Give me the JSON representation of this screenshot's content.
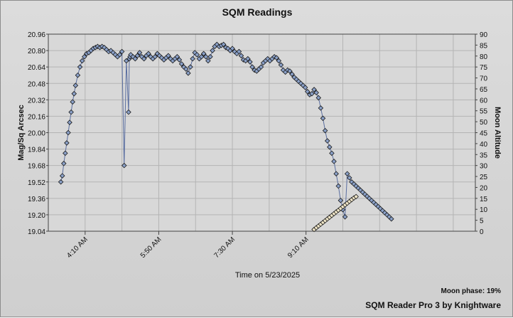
{
  "chart_data": {
    "type": "scatter",
    "title": "SQM Readings",
    "xlabel": "Time on 5/23/2025",
    "ylabel": "Mag/Sq Arcsec",
    "y2label": "Moon Altitude",
    "grid": true,
    "x_ticks": [
      "4:10 AM",
      "5:50 AM",
      "7:30 AM",
      "9:10 AM"
    ],
    "x_tick_minutes": [
      250,
      350,
      450,
      550
    ],
    "x_range_minutes": [
      200,
      780
    ],
    "ylim": [
      19.04,
      20.96
    ],
    "y_ticks": [
      19.04,
      19.2,
      19.36,
      19.52,
      19.68,
      19.84,
      20.0,
      20.16,
      20.32,
      20.48,
      20.64,
      20.8,
      20.96
    ],
    "y2lim": [
      0,
      90
    ],
    "y2_ticks": [
      0,
      5,
      10,
      15,
      20,
      25,
      30,
      35,
      40,
      45,
      50,
      55,
      60,
      65,
      70,
      75,
      80,
      85,
      90
    ],
    "colors": {
      "series_line": "#5a6ea0",
      "marker_fill": "#8aa0c8",
      "marker_stroke": "#1a1a1a",
      "moon_fill": "#f0e6c8",
      "grid": "#b4b4b4",
      "plot_bg": "#d8d8d8"
    },
    "series": [
      {
        "name": "",
        "axis": "left",
        "x_minutes": [
          217,
          219,
          221,
          223,
          225,
          227,
          229,
          231,
          233,
          235,
          237,
          240,
          243,
          246,
          249,
          252,
          255,
          258,
          261,
          264,
          267,
          270,
          273,
          276,
          279,
          282,
          285,
          288,
          291,
          294,
          297,
          300,
          303,
          306,
          309,
          310,
          311,
          312,
          315,
          318,
          321,
          324,
          327,
          330,
          333,
          336,
          339,
          342,
          345,
          348,
          351,
          354,
          357,
          360,
          363,
          366,
          369,
          372,
          375,
          378,
          381,
          384,
          387,
          390,
          393,
          396,
          399,
          402,
          405,
          408,
          411,
          414,
          417,
          420,
          423,
          426,
          429,
          432,
          435,
          438,
          441,
          444,
          447,
          450,
          453,
          456,
          459,
          462,
          465,
          468,
          471,
          474,
          477,
          480,
          483,
          486,
          489,
          492,
          495,
          498,
          501,
          504,
          507,
          510,
          513,
          516,
          519,
          522,
          525,
          528,
          531,
          534,
          537,
          540,
          543,
          546,
          549,
          552,
          555,
          558,
          561,
          564,
          567,
          570,
          573,
          576,
          579,
          582,
          585,
          588,
          591,
          594,
          597,
          600,
          603,
          606,
          609,
          612,
          615,
          618,
          621,
          624,
          627,
          630,
          633,
          636,
          639,
          642,
          645,
          648,
          651,
          654,
          657,
          660,
          663,
          666
        ],
        "values": [
          19.52,
          19.58,
          19.7,
          19.8,
          19.9,
          20.0,
          20.1,
          20.2,
          20.3,
          20.38,
          20.46,
          20.56,
          20.64,
          20.7,
          20.74,
          20.77,
          20.78,
          20.8,
          20.82,
          20.83,
          20.84,
          20.83,
          20.84,
          20.83,
          20.81,
          20.79,
          20.8,
          20.78,
          20.76,
          20.74,
          20.76,
          20.79,
          19.68,
          20.7,
          20.2,
          20.72,
          20.74,
          20.76,
          20.74,
          20.72,
          20.75,
          20.78,
          20.74,
          20.72,
          20.75,
          20.77,
          20.74,
          20.72,
          20.74,
          20.77,
          20.75,
          20.73,
          20.71,
          20.73,
          20.75,
          20.72,
          20.7,
          20.72,
          20.74,
          20.71,
          20.67,
          20.64,
          20.62,
          20.58,
          20.64,
          20.72,
          20.78,
          20.76,
          20.72,
          20.74,
          20.77,
          20.74,
          20.7,
          20.74,
          20.8,
          20.84,
          20.86,
          20.84,
          20.85,
          20.86,
          20.83,
          20.82,
          20.8,
          20.82,
          20.79,
          20.77,
          20.79,
          20.75,
          20.71,
          20.7,
          20.72,
          20.69,
          20.64,
          20.61,
          20.6,
          20.62,
          20.64,
          20.68,
          20.7,
          20.72,
          20.7,
          20.72,
          20.74,
          20.73,
          20.7,
          20.66,
          20.61,
          20.59,
          20.61,
          20.6,
          20.57,
          20.54,
          20.52,
          20.5,
          20.48,
          20.46,
          20.44,
          20.4,
          20.37,
          20.38,
          20.42,
          20.39,
          20.34,
          20.24,
          20.14,
          20.02,
          19.92,
          19.86,
          19.8,
          19.72,
          19.6,
          19.48,
          19.34,
          19.25,
          19.18,
          19.6,
          19.56,
          19.52,
          19.5,
          19.48,
          19.46,
          19.44,
          19.42,
          19.4,
          19.38,
          19.36,
          19.34,
          19.32,
          19.3,
          19.28,
          19.26,
          19.24,
          19.22,
          19.2,
          19.18,
          19.16
        ],
        "point_count_markers": 137
      },
      {
        "name": "",
        "axis": "right",
        "x_minutes": [
          561,
          564,
          567,
          570,
          573,
          576,
          579,
          582,
          585,
          588,
          591,
          594,
          597,
          600,
          603,
          606,
          609,
          612,
          615,
          618
        ],
        "values": [
          0.8,
          1.6,
          2.4,
          3.2,
          4.0,
          4.8,
          5.6,
          6.4,
          7.2,
          8.0,
          8.8,
          9.6,
          10.4,
          11.2,
          12.0,
          12.8,
          13.6,
          14.4,
          15.2,
          15.8
        ]
      }
    ],
    "annotations": {
      "moon_phase": "Moon phase: 19%",
      "credit": "SQM Reader Pro 3 by Knightware"
    }
  }
}
